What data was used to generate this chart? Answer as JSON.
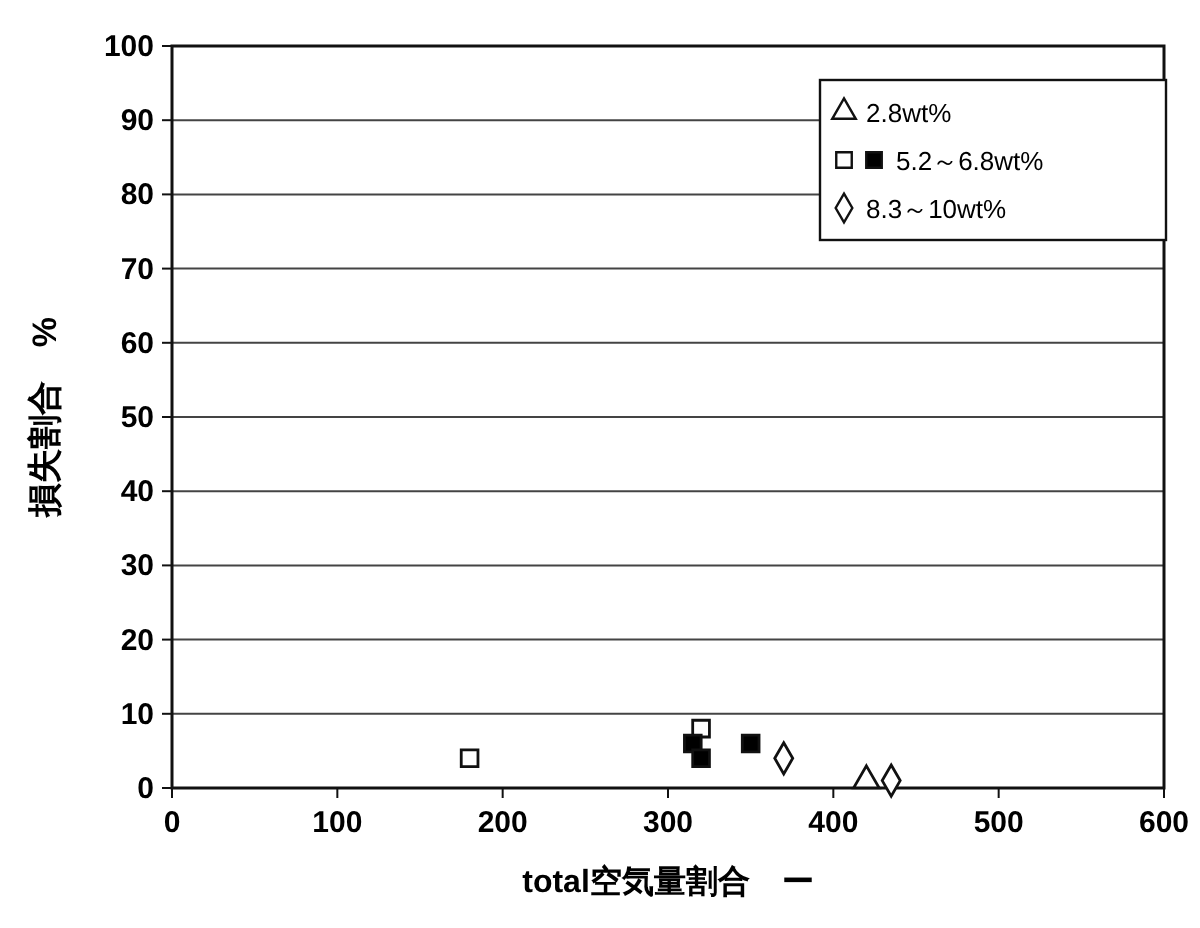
{
  "chart_data": {
    "type": "scatter",
    "xlabel": "total空気量割合　ー",
    "ylabel": "損失割合　%",
    "xlim": [
      0,
      600
    ],
    "ylim": [
      0,
      100
    ],
    "xticks": [
      0,
      100,
      200,
      300,
      400,
      500,
      600
    ],
    "yticks": [
      0,
      10,
      20,
      30,
      40,
      50,
      60,
      70,
      80,
      90,
      100
    ],
    "grid": "y",
    "legend": "top right",
    "series": [
      {
        "name": "2.8wt%",
        "marker": "triangle",
        "color": "#ffffff",
        "x": [
          420
        ],
        "values": [
          1
        ]
      },
      {
        "marker": "square",
        "color": "#ffffff",
        "x": [
          180,
          320
        ],
        "values": [
          4,
          8
        ]
      },
      {
        "name": "5.2～6.8wt%",
        "marker": "square",
        "color": "#000000",
        "x": [
          315,
          320,
          350
        ],
        "values": [
          6,
          4,
          6
        ]
      },
      {
        "name": "8.3～10wt%",
        "marker": "diamond",
        "color": "#ffffff",
        "x": [
          370,
          435
        ],
        "values": [
          4,
          1
        ]
      }
    ]
  }
}
